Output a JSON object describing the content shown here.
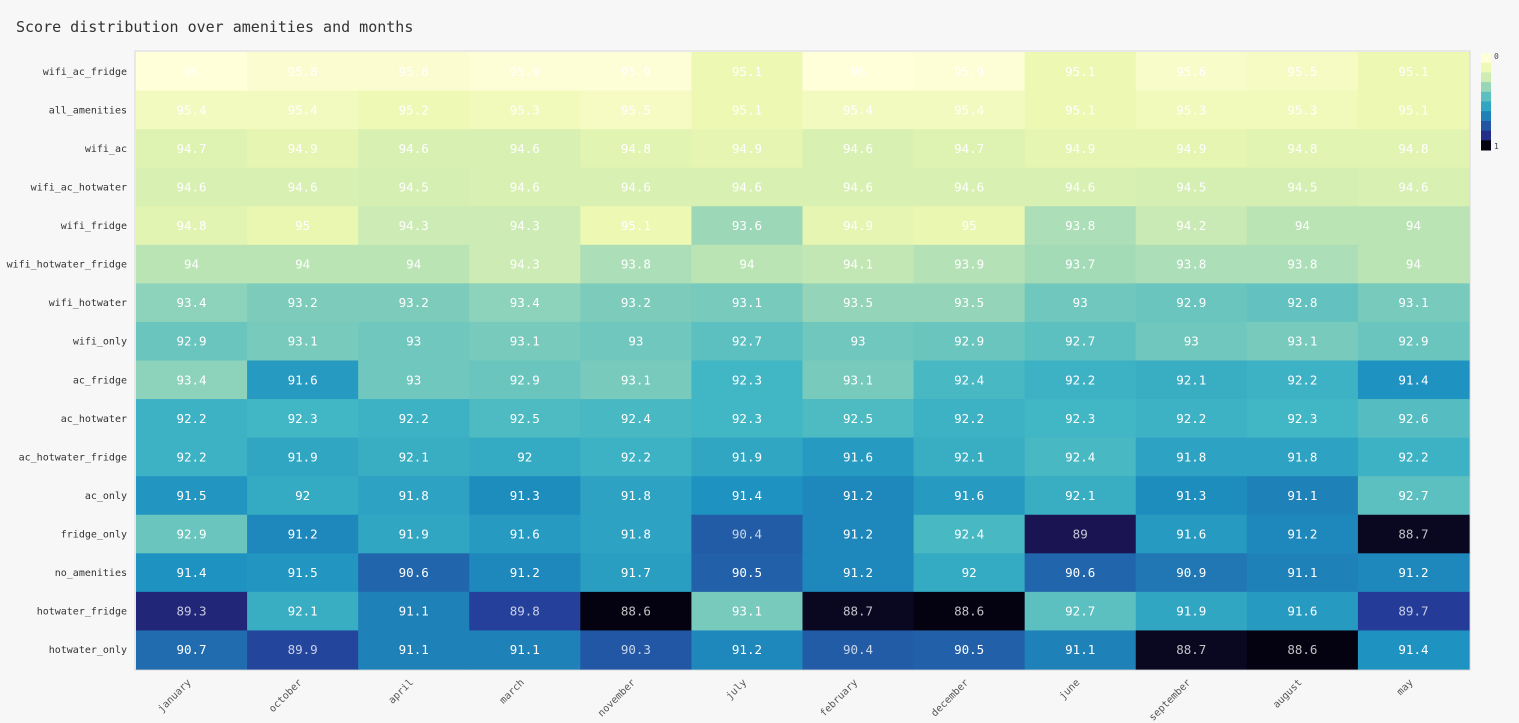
{
  "chart_data": {
    "type": "heatmap",
    "title": "Score distribution over amenities and months",
    "x_categories": [
      "january",
      "october",
      "april",
      "march",
      "november",
      "july",
      "february",
      "december",
      "june",
      "september",
      "august",
      "may"
    ],
    "y_categories": [
      "wifi_ac_fridge",
      "all_amenities",
      "wifi_ac",
      "wifi_ac_hotwater",
      "wifi_fridge",
      "wifi_hotwater_fridge",
      "wifi_hotwater",
      "wifi_only",
      "ac_fridge",
      "ac_hotwater",
      "ac_hotwater_fridge",
      "ac_only",
      "fridge_only",
      "no_amenities",
      "hotwater_fridge",
      "hotwater_only"
    ],
    "values": [
      [
        96,
        95.8,
        95.8,
        95.9,
        95.9,
        95.1,
        96,
        95.9,
        95.1,
        95.6,
        95.5,
        95.1
      ],
      [
        95.4,
        95.4,
        95.2,
        95.3,
        95.5,
        95.1,
        95.4,
        95.4,
        95.1,
        95.3,
        95.3,
        95.1
      ],
      [
        94.7,
        94.9,
        94.6,
        94.6,
        94.8,
        94.9,
        94.6,
        94.7,
        94.9,
        94.9,
        94.8,
        94.8
      ],
      [
        94.6,
        94.6,
        94.5,
        94.6,
        94.6,
        94.6,
        94.6,
        94.6,
        94.6,
        94.5,
        94.5,
        94.6
      ],
      [
        94.8,
        95,
        94.3,
        94.3,
        95.1,
        93.6,
        94.9,
        95,
        93.8,
        94.2,
        94,
        94
      ],
      [
        94,
        94,
        94,
        94.3,
        93.8,
        94,
        94.1,
        93.9,
        93.7,
        93.8,
        93.8,
        94
      ],
      [
        93.4,
        93.2,
        93.2,
        93.4,
        93.2,
        93.1,
        93.5,
        93.5,
        93,
        92.9,
        92.8,
        93.1
      ],
      [
        92.9,
        93.1,
        93,
        93.1,
        93,
        92.7,
        93,
        92.9,
        92.7,
        93,
        93.1,
        92.9
      ],
      [
        93.4,
        91.6,
        93,
        92.9,
        93.1,
        92.3,
        93.1,
        92.4,
        92.2,
        92.1,
        92.2,
        91.4
      ],
      [
        92.2,
        92.3,
        92.2,
        92.5,
        92.4,
        92.3,
        92.5,
        92.2,
        92.3,
        92.2,
        92.3,
        92.6
      ],
      [
        92.2,
        91.9,
        92.1,
        92,
        92.2,
        91.9,
        91.6,
        92.1,
        92.4,
        91.8,
        91.8,
        92.2
      ],
      [
        91.5,
        92,
        91.8,
        91.3,
        91.8,
        91.4,
        91.2,
        91.6,
        92.1,
        91.3,
        91.1,
        92.7
      ],
      [
        92.9,
        91.2,
        91.9,
        91.6,
        91.8,
        90.4,
        91.2,
        92.4,
        89,
        91.6,
        91.2,
        88.7
      ],
      [
        91.4,
        91.5,
        90.6,
        91.2,
        91.7,
        90.5,
        91.2,
        92,
        90.6,
        90.9,
        91.1,
        91.2
      ],
      [
        89.3,
        92.1,
        91.1,
        89.8,
        88.6,
        93.1,
        88.7,
        88.6,
        92.7,
        91.9,
        91.6,
        89.7
      ],
      [
        90.7,
        89.9,
        91.1,
        91.1,
        90.3,
        91.2,
        90.4,
        90.5,
        91.1,
        88.7,
        88.6,
        91.4
      ]
    ],
    "zrange": [
      88.6,
      96
    ],
    "colorscale": "YlGnBu",
    "colorbar_ticks": [
      "0",
      "1"
    ],
    "grid": false
  }
}
